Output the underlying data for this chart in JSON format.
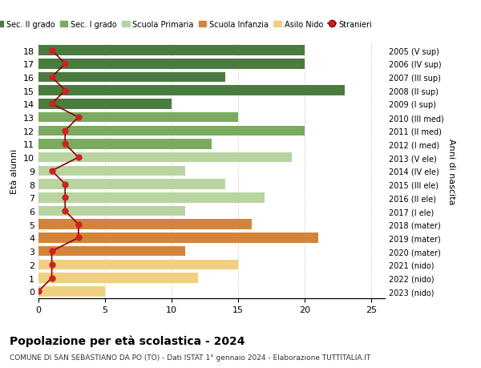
{
  "ages": [
    18,
    17,
    16,
    15,
    14,
    13,
    12,
    11,
    10,
    9,
    8,
    7,
    6,
    5,
    4,
    3,
    2,
    1,
    0
  ],
  "years": [
    "2005 (V sup)",
    "2006 (IV sup)",
    "2007 (III sup)",
    "2008 (II sup)",
    "2009 (I sup)",
    "2010 (III med)",
    "2011 (II med)",
    "2012 (I med)",
    "2013 (V ele)",
    "2014 (IV ele)",
    "2015 (III ele)",
    "2016 (II ele)",
    "2017 (I ele)",
    "2018 (mater)",
    "2019 (mater)",
    "2020 (mater)",
    "2021 (nido)",
    "2022 (nido)",
    "2023 (nido)"
  ],
  "bar_values": [
    20,
    20,
    14,
    23,
    10,
    15,
    20,
    13,
    19,
    11,
    14,
    17,
    11,
    16,
    21,
    11,
    15,
    12,
    5
  ],
  "stranieri": [
    1,
    2,
    1,
    2,
    1,
    3,
    2,
    2,
    3,
    1,
    2,
    2,
    2,
    3,
    3,
    1,
    1,
    1,
    0
  ],
  "categories": {
    "sec2": [
      18,
      17,
      16,
      15,
      14
    ],
    "sec1": [
      13,
      12,
      11
    ],
    "primaria": [
      10,
      9,
      8,
      7,
      6
    ],
    "infanzia": [
      5,
      4,
      3
    ],
    "nido": [
      2,
      1,
      0
    ]
  },
  "colors": {
    "sec2": "#4a7c3f",
    "sec1": "#7aab5e",
    "primaria": "#b8d4a0",
    "infanzia": "#d2853a",
    "nido": "#f0d080",
    "stranieri_line": "#8b0000",
    "stranieri_dot": "#cc2222"
  },
  "xlabel": "Età alunni",
  "ylabel": "Anni di nascita",
  "title": "Popolazione per età scolastica - 2024",
  "subtitle": "COMUNE DI SAN SEBASTIANO DA PO (TO) - Dati ISTAT 1° gennaio 2024 - Elaborazione TUTTITALIA.IT",
  "legend_labels": [
    "Sec. II grado",
    "Sec. I grado",
    "Scuola Primaria",
    "Scuola Infanzia",
    "Asilo Nido",
    "Stranieri"
  ],
  "xlim": [
    0,
    26
  ],
  "background_color": "#ffffff"
}
